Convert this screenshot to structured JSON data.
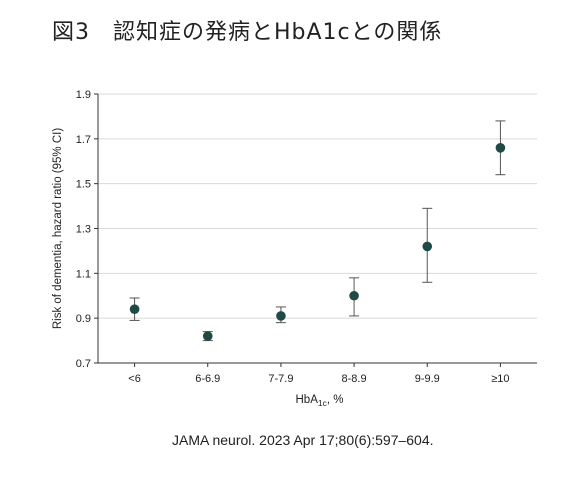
{
  "title": "図3　認知症の発病とHbA1cとの関係",
  "citation": "JAMA neurol. 2023 Apr 17;80(6):597–604.",
  "colors": {
    "point": "#1f4a46",
    "errorbar": "#555555",
    "grid": "#d9d9d9",
    "axis": "#333333"
  },
  "chart_data": {
    "type": "scatter",
    "categories": [
      "<6",
      "6-6.9",
      "7-7.9",
      "8-8.9",
      "9-9.9",
      "≥10"
    ],
    "values": [
      0.94,
      0.82,
      0.91,
      1.0,
      1.22,
      1.66
    ],
    "ci_lower": [
      0.89,
      0.8,
      0.88,
      0.91,
      1.06,
      1.54
    ],
    "ci_upper": [
      0.99,
      0.84,
      0.95,
      1.08,
      1.39,
      1.78
    ],
    "ylabel": "Risk of dementia, hazard ratio (95% CI)",
    "xlabel": "HbA",
    "xlabel_sub": "1c",
    "xlabel_suffix": ", %",
    "ylim": [
      0.7,
      1.9
    ],
    "yticks": [
      "0.7",
      "0.9",
      "1.1",
      "1.3",
      "1.5",
      "1.7",
      "1.9"
    ],
    "grid": true,
    "legend": "none"
  }
}
